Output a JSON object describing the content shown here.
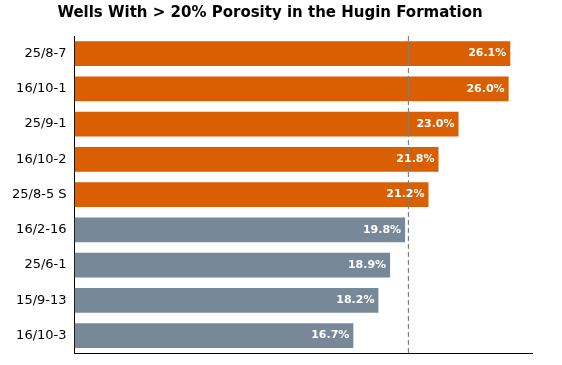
{
  "chart_data": {
    "type": "bar",
    "title": "Wells With > 20% Porosity in the Hugin Formation",
    "orientation": "horizontal",
    "categories": [
      "25/8-7",
      "16/10-1",
      "25/9-1",
      "16/10-2",
      "25/8-5 S",
      "16/2-16",
      "25/6-1",
      "15/9-13",
      "16/10-3"
    ],
    "values": [
      26.1,
      26.0,
      23.0,
      21.8,
      21.2,
      19.8,
      18.9,
      18.2,
      16.7
    ],
    "value_labels": [
      "26.1%",
      "26.0%",
      "23.0%",
      "21.8%",
      "21.2%",
      "19.8%",
      "18.9%",
      "18.2%",
      "16.7%"
    ],
    "colors": [
      "#d95f02",
      "#d95f02",
      "#d95f02",
      "#d95f02",
      "#d95f02",
      "#778899",
      "#778899",
      "#778899",
      "#778899"
    ],
    "xlim": [
      0,
      27.4
    ],
    "xticks": [],
    "threshold": 20,
    "data_labels": true,
    "tick_labels": "y",
    "grid": false
  }
}
